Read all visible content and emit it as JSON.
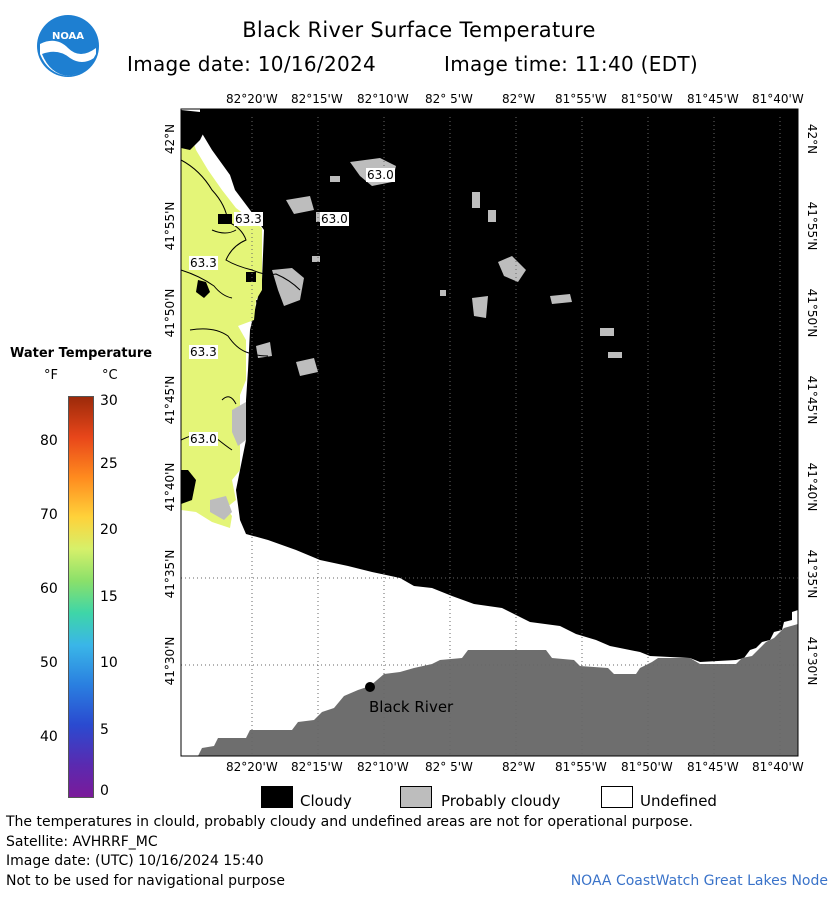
{
  "header": {
    "title": "Black River Surface Temperature",
    "image_date": "Image date: 10/16/2024",
    "image_time": "Image time: 11:40 (EDT)"
  },
  "logo": {
    "text": "NOAA",
    "color": "#1e7fd1"
  },
  "map": {
    "lon_labels": [
      "82°20'W",
      "82°15'W",
      "82°10'W",
      "82° 5'W",
      "82°W",
      "81°55'W",
      "81°50'W",
      "81°45'W",
      "81°40'W"
    ],
    "lat_labels": [
      "42°N",
      "41°55'N",
      "41°50'N",
      "41°45'N",
      "41°40'N",
      "41°35'N",
      "41°30'N"
    ],
    "contour_labels": [
      "63.0",
      "63.3",
      "63.0",
      "63.3",
      "63.3",
      "63.0"
    ],
    "place_label": "Black River",
    "colors": {
      "cloud": "#000000",
      "probably_cloudy": "#bdbdbd",
      "undefined": "#ffffff",
      "land": "#6e6e6e",
      "water_63": "#e4f578"
    }
  },
  "legend": {
    "title": "Water Temperature",
    "unit_f": "°F",
    "unit_c": "°C",
    "f_ticks": [
      "80",
      "70",
      "60",
      "50",
      "40"
    ],
    "c_ticks": [
      "30",
      "25",
      "20",
      "15",
      "10",
      "5",
      "0"
    ]
  },
  "key": {
    "cloudy": "Cloudy",
    "probably_cloudy": "Probably cloudy",
    "undefined": "Undefined"
  },
  "footer": {
    "disclaimer": "The temperatures in clould, probably cloudy and undefined areas are not for operational purpose.",
    "satellite": "Satellite: AVHRRF_MC",
    "utc_date": "Image date: (UTC) 10/16/2024  15:40",
    "nav_warning": "Not to be used for navigational purpose",
    "credit": "NOAA CoastWatch Great Lakes Node"
  }
}
